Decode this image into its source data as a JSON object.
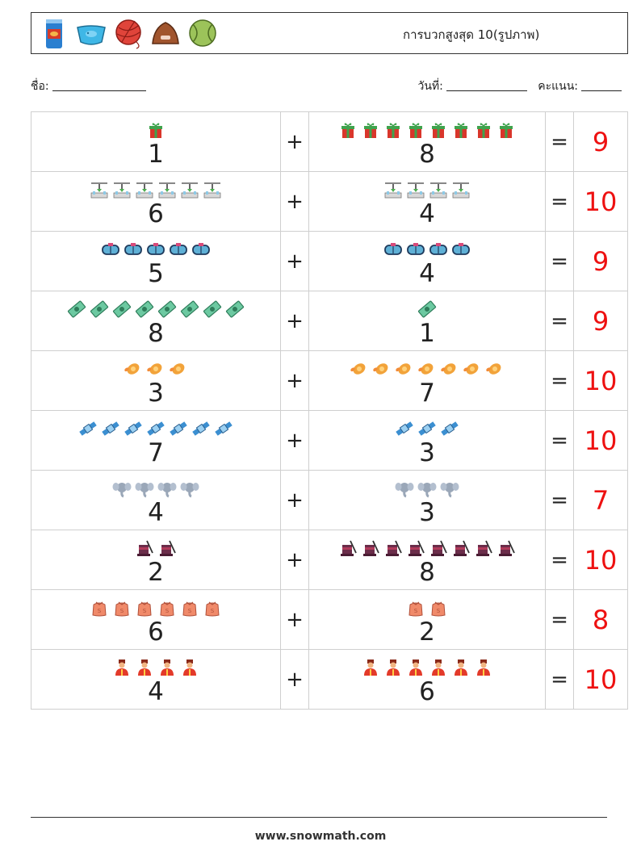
{
  "header": {
    "title": "การบวกสูงสุด 10(รูปภาพ)",
    "icons": [
      "can-icon",
      "fish-bowl-icon",
      "yarn-ball-icon",
      "pet-bed-icon",
      "tennis-ball-icon"
    ]
  },
  "info": {
    "name_label": "ชื่อ:",
    "date_label": "วันที่:",
    "score_label": "คะแนน:"
  },
  "rows": [
    {
      "a": "1",
      "b": "8",
      "ans": "9",
      "icon": "gift-icon"
    },
    {
      "a": "6",
      "b": "4",
      "ans": "10",
      "icon": "lab-icon"
    },
    {
      "a": "5",
      "b": "4",
      "ans": "9",
      "icon": "vr-goggles-icon"
    },
    {
      "a": "8",
      "b": "1",
      "ans": "9",
      "icon": "money-icon"
    },
    {
      "a": "3",
      "b": "7",
      "ans": "10",
      "icon": "pacifier-icon"
    },
    {
      "a": "7",
      "b": "3",
      "ans": "10",
      "icon": "satellite-icon"
    },
    {
      "a": "4",
      "b": "3",
      "ans": "7",
      "icon": "elephant-icon"
    },
    {
      "a": "2",
      "b": "8",
      "ans": "10",
      "icon": "magic-hat-icon"
    },
    {
      "a": "6",
      "b": "2",
      "ans": "8",
      "icon": "sack-icon"
    },
    {
      "a": "4",
      "b": "6",
      "ans": "10",
      "icon": "guard-icon"
    }
  ],
  "symbols": {
    "plus": "+",
    "equals": "="
  },
  "footer": {
    "url": "www.snowmath.com"
  },
  "colors": {
    "answer": "#ee1111",
    "border": "#cfcfcf"
  }
}
